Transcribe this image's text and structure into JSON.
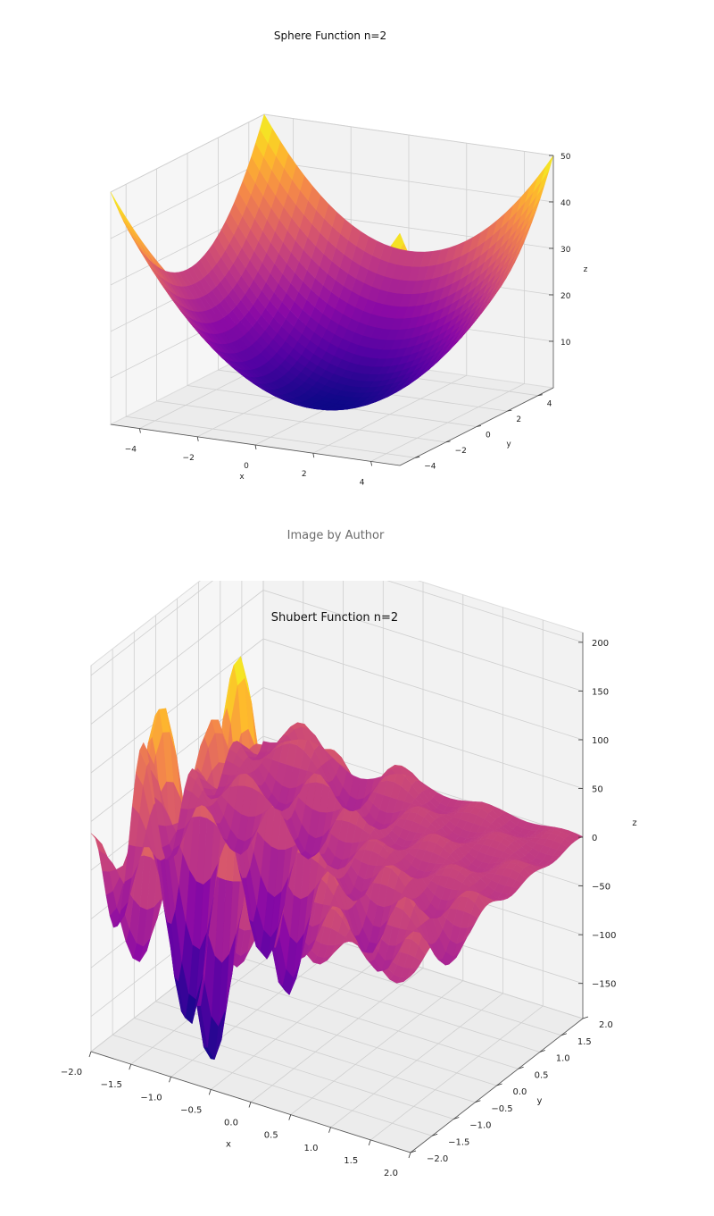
{
  "caption": "Image by Author",
  "chart_data": [
    {
      "type": "surface3d",
      "title": "Sphere Function n=2",
      "function": "z = x^2 + y^2",
      "xlabel": "x",
      "ylabel": "y",
      "zlabel": "z",
      "xlim": [
        -5,
        5
      ],
      "ylim": [
        -5,
        5
      ],
      "zlim": [
        0,
        50
      ],
      "xticks": [
        "−4",
        "−2",
        "0",
        "2",
        "4"
      ],
      "yticks": [
        "−4",
        "−2",
        "0",
        "2",
        "4"
      ],
      "zticks": [
        "10",
        "20",
        "30",
        "40",
        "50"
      ],
      "colormap": "plasma",
      "grid": true
    },
    {
      "type": "surface3d",
      "title": "Shubert Function n=2",
      "function": "z = (Σ_{i=1..5} i·cos((i+1)x+i)) · (Σ_{i=1..5} i·cos((i+1)y+i))",
      "xlabel": "x",
      "ylabel": "y",
      "zlabel": "z",
      "xlim": [
        -2,
        2
      ],
      "ylim": [
        -2,
        2
      ],
      "zlim": [
        -186,
        210
      ],
      "xticks": [
        "−2.0",
        "−1.5",
        "−1.0",
        "−0.5",
        "0.0",
        "0.5",
        "1.0",
        "1.5",
        "2.0"
      ],
      "yticks": [
        "−2.0",
        "−1.5",
        "−1.0",
        "−0.5",
        "0.0",
        "0.5",
        "1.0",
        "1.5",
        "2.0"
      ],
      "zticks": [
        "−150",
        "−100",
        "−50",
        "0",
        "50",
        "100",
        "150",
        "200"
      ],
      "colormap": "plasma",
      "grid": true
    }
  ]
}
